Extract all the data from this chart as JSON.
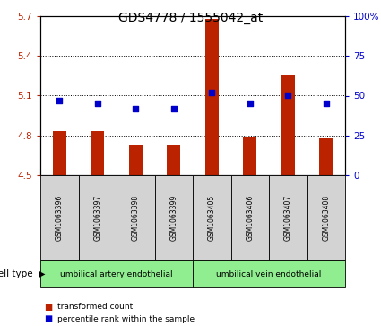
{
  "title": "GDS4778 / 1555042_at",
  "samples": [
    "GSM1063396",
    "GSM1063397",
    "GSM1063398",
    "GSM1063399",
    "GSM1063405",
    "GSM1063406",
    "GSM1063407",
    "GSM1063408"
  ],
  "bar_values": [
    4.83,
    4.83,
    4.73,
    4.73,
    5.68,
    4.79,
    5.25,
    4.78
  ],
  "dot_values": [
    47,
    45,
    42,
    42,
    52,
    45,
    50,
    45
  ],
  "bar_color": "#BB2200",
  "dot_color": "#0000CC",
  "ylim_left": [
    4.5,
    5.7
  ],
  "ylim_right": [
    0,
    100
  ],
  "yticks_left": [
    4.5,
    4.8,
    5.1,
    5.4,
    5.7
  ],
  "yticks_right": [
    0,
    25,
    50,
    75,
    100
  ],
  "ytick_labels_left": [
    "4.5",
    "4.8",
    "5.1",
    "5.4",
    "5.7"
  ],
  "ytick_labels_right": [
    "0",
    "25",
    "50",
    "75",
    "100%"
  ],
  "cell_group1_label": "umbilical artery endothelial",
  "cell_group2_label": "umbilical vein endothelial",
  "cell_group_color": "#90EE90",
  "cell_type_label": "cell type",
  "legend_bar_label": "transformed count",
  "legend_dot_label": "percentile rank within the sample",
  "grid_color": "black",
  "bar_width": 0.35,
  "label_box_color": "#D3D3D3",
  "bg_color": "white"
}
